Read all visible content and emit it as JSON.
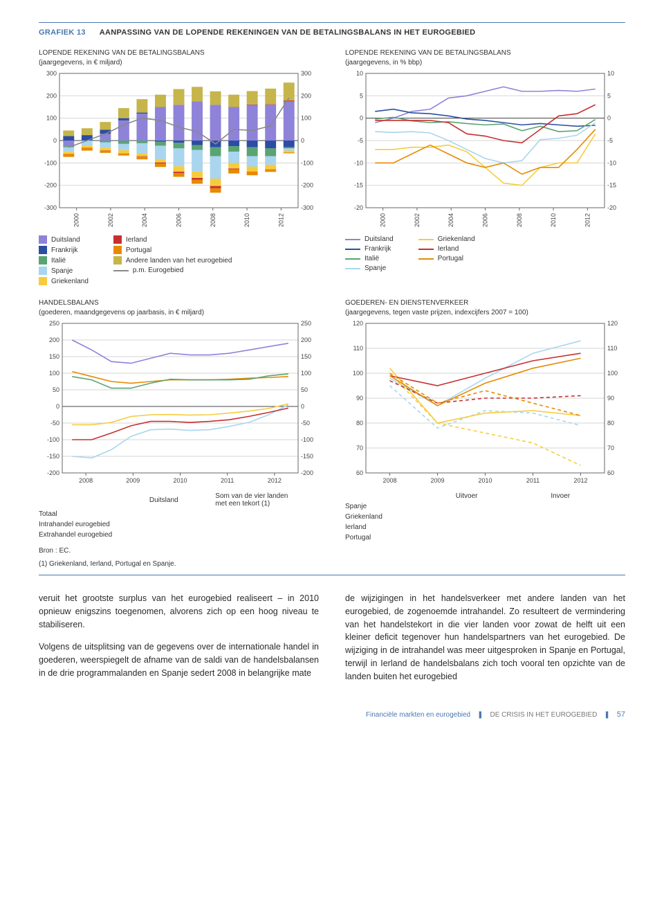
{
  "header": {
    "label": "GRAFIEK 13",
    "title": "AANPASSING VAN DE LOPENDE REKENINGEN VAN DE BETALINGSBALANS IN HET EUROGEBIED"
  },
  "colors": {
    "duitsland": "#8f82d9",
    "frankrijk": "#2b4ea2",
    "italie": "#5aa373",
    "spanje": "#a9d5ef",
    "griekenland": "#f6cc3e",
    "ierland": "#c72f2f",
    "portugal": "#e68a00",
    "andere": "#c6b54b",
    "eurogebied_line": "#888888",
    "axis": "#666666",
    "grid": "#d6d6d6",
    "zero": "#444444"
  },
  "chart1": {
    "title": "LOPENDE REKENING VAN DE BETALINGSBALANS",
    "subtitle": "(jaargegevens, in € miljard)",
    "ylim": [
      -300,
      300
    ],
    "ytick_step": 100,
    "years": [
      2000,
      2002,
      2004,
      2006,
      2008,
      2010,
      2012
    ],
    "series": {
      "duitsland": [
        -25,
        0,
        30,
        90,
        120,
        150,
        160,
        175,
        160,
        150,
        160,
        160,
        175
      ],
      "frankrijk": [
        20,
        25,
        18,
        10,
        5,
        -5,
        -10,
        -20,
        -30,
        -25,
        -30,
        -35,
        -30
      ],
      "italie": [
        -5,
        0,
        -8,
        -15,
        -12,
        -18,
        -25,
        -22,
        -40,
        -25,
        -40,
        -35,
        -5
      ],
      "spanje": [
        -20,
        -22,
        -24,
        -28,
        -45,
        -60,
        -80,
        -95,
        -100,
        -50,
        -46,
        -38,
        -10
      ],
      "griekenland": [
        -10,
        -10,
        -12,
        -15,
        -13,
        -15,
        -24,
        -30,
        -33,
        -25,
        -22,
        -20,
        -8
      ],
      "ierland": [
        -1,
        -1,
        -1,
        -1,
        -2,
        -5,
        -6,
        -8,
        -10,
        -4,
        1,
        2,
        4
      ],
      "portugal": [
        -12,
        -12,
        -10,
        -8,
        -12,
        -15,
        -17,
        -18,
        -20,
        -18,
        -17,
        -12,
        -4
      ],
      "andere": [
        25,
        30,
        35,
        45,
        60,
        55,
        70,
        65,
        60,
        55,
        60,
        70,
        80
      ]
    },
    "line_eurogebied": [
      -30,
      0,
      30,
      70,
      100,
      90,
      60,
      40,
      -15,
      50,
      45,
      65,
      190
    ]
  },
  "chart2": {
    "title": "LOPENDE REKENING VAN DE BETALINGSBALANS",
    "subtitle": "(jaargegevens, in % bbp)",
    "ylim": [
      -20,
      10
    ],
    "ytick_step": 5,
    "years": [
      2000,
      2002,
      2004,
      2006,
      2008,
      2010,
      2012
    ],
    "series": {
      "duitsland": [
        -1,
        0,
        1.5,
        2,
        4.5,
        5,
        6,
        7,
        6,
        6,
        6.2,
        6,
        6.5
      ],
      "frankrijk": [
        1.5,
        2,
        1.2,
        1,
        0.5,
        -0.2,
        -0.5,
        -1,
        -1.5,
        -1.2,
        -1.5,
        -1.8,
        -1.6
      ],
      "italie": [
        -0.2,
        0.2,
        -0.6,
        -1,
        -0.8,
        -1.2,
        -1.5,
        -1.3,
        -2.8,
        -1.8,
        -3,
        -2.8,
        -0.3
      ],
      "spanje": [
        -3,
        -3.2,
        -3,
        -3.3,
        -5,
        -7,
        -9,
        -10,
        -9.5,
        -4.8,
        -4.5,
        -3.8,
        -1
      ],
      "griekenland": [
        -7,
        -7,
        -6.5,
        -6.5,
        -6,
        -7.5,
        -11,
        -14.5,
        -15,
        -11,
        -10,
        -10,
        -3.5
      ],
      "ierland": [
        -0.5,
        -0.5,
        -0.5,
        -0.5,
        -1,
        -3.5,
        -4,
        -5,
        -5.5,
        -2.5,
        0.5,
        1,
        3
      ],
      "portugal": [
        -10,
        -10,
        -8,
        -6,
        -8,
        -10,
        -11,
        -10,
        -12.5,
        -11,
        -11,
        -7,
        -2.5
      ]
    }
  },
  "legend1": {
    "left": [
      {
        "label": "Duitsland",
        "color": "#8f82d9",
        "type": "square"
      },
      {
        "label": "Frankrijk",
        "color": "#2b4ea2",
        "type": "square"
      },
      {
        "label": "Italië",
        "color": "#5aa373",
        "type": "square"
      },
      {
        "label": "Spanje",
        "color": "#a9d5ef",
        "type": "square"
      },
      {
        "label": "Griekenland",
        "color": "#f6cc3e",
        "type": "square"
      }
    ],
    "right": [
      {
        "label": "Ierland",
        "color": "#c72f2f",
        "type": "square"
      },
      {
        "label": "Portugal",
        "color": "#e68a00",
        "type": "square"
      },
      {
        "label": "Andere landen van het eurogebied",
        "color": "#c6b54b",
        "type": "square"
      },
      {
        "label": "p.m. Eurogebied",
        "color": "#888888",
        "type": "line"
      }
    ]
  },
  "legend2": {
    "left": [
      {
        "label": "Duitsland",
        "color": "#8f82d9",
        "type": "line"
      },
      {
        "label": "Frankrijk",
        "color": "#2b4ea2",
        "type": "line"
      },
      {
        "label": "Italië",
        "color": "#5aa373",
        "type": "line"
      },
      {
        "label": "Spanje",
        "color": "#a9d5ef",
        "type": "line"
      }
    ],
    "right": [
      {
        "label": "Griekenland",
        "color": "#f6cc3e",
        "type": "line"
      },
      {
        "label": "Ierland",
        "color": "#c72f2f",
        "type": "line"
      },
      {
        "label": "Portugal",
        "color": "#e68a00",
        "type": "line"
      }
    ]
  },
  "chart3": {
    "title": "HANDELSBALANS",
    "subtitle": "(goederen, maandgegevens op jaarbasis, in € miljard)",
    "ylim": [
      -200,
      250
    ],
    "ytick_step": 50,
    "xlabels": [
      2008,
      2009,
      2010,
      2011,
      2012
    ],
    "series": {
      "de_totaal": [
        200,
        170,
        135,
        130,
        145,
        160,
        155,
        155,
        160,
        170,
        180,
        190
      ],
      "de_intra": [
        105,
        90,
        75,
        70,
        75,
        80,
        80,
        80,
        82,
        85,
        87,
        90
      ],
      "de_extra": [
        90,
        80,
        55,
        55,
        70,
        82,
        80,
        80,
        80,
        82,
        92,
        98
      ],
      "sum_totaal": [
        -150,
        -155,
        -130,
        -90,
        -70,
        -68,
        -72,
        -70,
        -60,
        -48,
        -25,
        5
      ],
      "sum_intra": [
        -55,
        -55,
        -48,
        -30,
        -25,
        -24,
        -26,
        -25,
        -20,
        -14,
        -6,
        8
      ],
      "sum_extra": [
        -100,
        -100,
        -80,
        -58,
        -45,
        -45,
        -48,
        -45,
        -40,
        -30,
        -18,
        -5
      ]
    },
    "legend": {
      "rows": [
        "Totaal",
        "Intrahandel eurogebied",
        "Extrahandel eurogebied"
      ],
      "col_headers": [
        "Duitsland",
        "Som van de vier landen met een tekort (1)"
      ],
      "de_colors": [
        "#8f82d9",
        "#e68a00",
        "#5aa373"
      ],
      "sum_colors": [
        "#a9d5ef",
        "#f6cc3e",
        "#c72f2f"
      ]
    }
  },
  "chart4": {
    "title": "GOEDEREN- EN DIENSTENVERKEER",
    "subtitle": "(jaargegevens, tegen vaste prijzen, indexcijfers 2007 = 100)",
    "ylim": [
      60,
      120
    ],
    "ytick_step": 10,
    "xlabels": [
      2008,
      2009,
      2010,
      2011,
      2012
    ],
    "series": {
      "es_uit": [
        98,
        87,
        98,
        108,
        113
      ],
      "es_in": [
        95,
        78,
        85,
        84,
        79
      ],
      "gr_uit": [
        102,
        80,
        84,
        85,
        83
      ],
      "gr_in": [
        100,
        80,
        76,
        72,
        63
      ],
      "ie_uit": [
        99,
        95,
        100,
        105,
        108
      ],
      "ie_in": [
        97,
        88,
        90,
        90,
        91
      ],
      "pt_uit": [
        99,
        87,
        96,
        102,
        106
      ],
      "pt_in": [
        100,
        88,
        93,
        88,
        83
      ]
    },
    "legend": {
      "col_headers": [
        "Uitvoer",
        "Invoer"
      ],
      "rows": [
        {
          "label": "Spanje",
          "color": "#a9d5ef"
        },
        {
          "label": "Griekenland",
          "color": "#f6cc3e"
        },
        {
          "label": "Ierland",
          "color": "#c72f2f"
        },
        {
          "label": "Portugal",
          "color": "#e68a00"
        }
      ]
    }
  },
  "source": {
    "bron": "Bron : EC.",
    "note": "(1) Griekenland, Ierland, Portugal en Spanje."
  },
  "bodytext": {
    "left1": "veruit het grootste surplus van het eurogebied realiseert – in 2010 opnieuw enigszins toegenomen, alvorens zich op een hoog niveau te stabiliseren.",
    "left2": "Volgens de uitsplitsing van de gegevens over de inter­nationale handel in goederen, weerspiegelt de afname van de saldi van de handelsbalansen in de drie program­malanden en Spanje sedert 2008 in belangrijke mate",
    "right": "de wijzigingen in het handelsverkeer met andere lan­den van het eurogebied, de zogenoemde intrahandel. Zo resulteert de vermindering van het handelstekort in die vier landen voor zowat de helft uit een kleiner deficit te­genover hun handelspartners van het eurogebied. De wij­ziging in de intrahandel was meer uitgesproken in Spanje en Portugal, terwijl in Ierland de handelsbalans zich toch vooral ten opzichte van de landen buiten het eurogebied"
  },
  "footer": {
    "sec": "Financiële markten en eurogebied",
    "chap": "DE CRISIS IN HET EUROGEBIED",
    "page": "57"
  }
}
